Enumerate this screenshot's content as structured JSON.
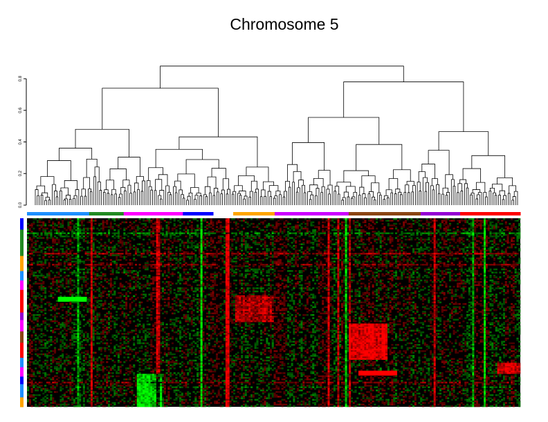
{
  "chart_data": {
    "type": "heatmap",
    "title": "Chromosome 5",
    "dendrogram": {
      "axis_ticks": [
        "0.0",
        "0.2",
        "0.4",
        "0.6",
        "0.8"
      ],
      "tick_values": [
        0.0,
        0.2,
        0.4,
        0.6,
        0.8
      ],
      "ylim": [
        0.0,
        0.8
      ],
      "leaf_count": 256,
      "root_height": 0.88
    },
    "column_groups": [
      {
        "color": "#1e90ff",
        "fraction": 0.126
      },
      {
        "color": "#228b22",
        "fraction": 0.07
      },
      {
        "color": "#ff00ff",
        "fraction": 0.12
      },
      {
        "color": "#0000ff",
        "fraction": 0.062
      },
      {
        "color": "#ffffff",
        "fraction": 0.04
      },
      {
        "color": "#ffa500",
        "fraction": 0.084
      },
      {
        "color": "#cc00ff",
        "fraction": 0.15
      },
      {
        "color": "#8b4513",
        "fraction": 0.146
      },
      {
        "color": "#9400d3",
        "fraction": 0.08
      },
      {
        "color": "#ff0000",
        "fraction": 0.122
      }
    ],
    "row_groups": [
      {
        "color": "#0000ff",
        "fraction": 0.06
      },
      {
        "color": "#228b22",
        "fraction": 0.14
      },
      {
        "color": "#ffa500",
        "fraction": 0.08
      },
      {
        "color": "#1e90ff",
        "fraction": 0.05
      },
      {
        "color": "#ff00ff",
        "fraction": 0.05
      },
      {
        "color": "#ff0000",
        "fraction": 0.12
      },
      {
        "color": "#9400d3",
        "fraction": 0.04
      },
      {
        "color": "#ff00ff",
        "fraction": 0.06
      },
      {
        "color": "#8b4513",
        "fraction": 0.06
      },
      {
        "color": "#ff0000",
        "fraction": 0.08
      },
      {
        "color": "#1e90ff",
        "fraction": 0.05
      },
      {
        "color": "#ff00ff",
        "fraction": 0.05
      },
      {
        "color": "#0000ff",
        "fraction": 0.04
      },
      {
        "color": "#1e90ff",
        "fraction": 0.07
      },
      {
        "color": "#ffa500",
        "fraction": 0.05
      }
    ],
    "heatmap_colors": {
      "low": "#00ff00",
      "mid": "#000000",
      "high": "#ff0000"
    },
    "heatmap_rows": 120,
    "heatmap_cols": 256
  }
}
